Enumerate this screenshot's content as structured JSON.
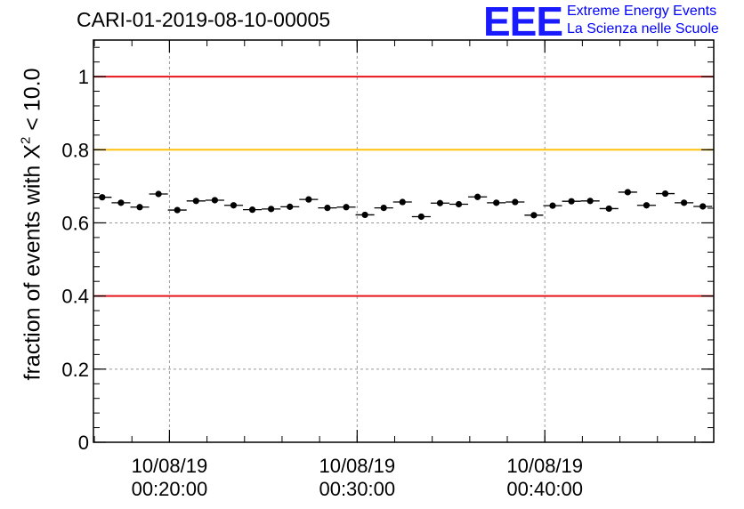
{
  "title": "CARI-01-2019-08-10-00005",
  "logo": {
    "mark": "EEE",
    "line1": "Extreme Energy Events",
    "line2": "La Scienza nelle Scuole",
    "color": "#1a1aff"
  },
  "chart_data": {
    "type": "scatter",
    "title": "CARI-01-2019-08-10-00005",
    "ylabel": {
      "prefix": "fraction of events with",
      "symbol": "X",
      "sup": "2",
      "suffix": "< 10.0"
    },
    "xlabel": "",
    "ylim": [
      0,
      1.1
    ],
    "xlim": [
      "00:15:57",
      "00:49:00"
    ],
    "grid": true,
    "yticks": [
      {
        "value": 0,
        "label": "0"
      },
      {
        "value": 0.2,
        "label": "0.2"
      },
      {
        "value": 0.4,
        "label": "0.4"
      },
      {
        "value": 0.6,
        "label": "0.6"
      },
      {
        "value": 0.8,
        "label": "0.8"
      },
      {
        "value": 1,
        "label": "1"
      }
    ],
    "xticks": [
      {
        "time": "00:20:00",
        "date": "10/08/19",
        "clock": "00:20:00"
      },
      {
        "time": "00:30:00",
        "date": "10/08/19",
        "clock": "00:30:00"
      },
      {
        "time": "00:40:00",
        "date": "10/08/19",
        "clock": "00:40:00"
      }
    ],
    "reference_lines": [
      {
        "y": 1.0,
        "color": "#e8141b"
      },
      {
        "y": 0.8,
        "color": "#ffc20e"
      },
      {
        "y": 0.4,
        "color": "#e8141b"
      }
    ],
    "series": [
      {
        "color": "#000000",
        "points": [
          {
            "t": "00:16:25",
            "y": 0.67
          },
          {
            "t": "00:17:25",
            "y": 0.655
          },
          {
            "t": "00:18:25",
            "y": 0.643
          },
          {
            "t": "00:19:25",
            "y": 0.679
          },
          {
            "t": "00:20:25",
            "y": 0.635
          },
          {
            "t": "00:21:25",
            "y": 0.66
          },
          {
            "t": "00:22:25",
            "y": 0.662
          },
          {
            "t": "00:23:25",
            "y": 0.648
          },
          {
            "t": "00:24:25",
            "y": 0.636
          },
          {
            "t": "00:25:25",
            "y": 0.638
          },
          {
            "t": "00:26:25",
            "y": 0.644
          },
          {
            "t": "00:27:25",
            "y": 0.664
          },
          {
            "t": "00:28:25",
            "y": 0.641
          },
          {
            "t": "00:29:25",
            "y": 0.643
          },
          {
            "t": "00:30:25",
            "y": 0.622
          },
          {
            "t": "00:31:25",
            "y": 0.641
          },
          {
            "t": "00:32:25",
            "y": 0.657
          },
          {
            "t": "00:33:25",
            "y": 0.617
          },
          {
            "t": "00:34:25",
            "y": 0.654
          },
          {
            "t": "00:35:25",
            "y": 0.651
          },
          {
            "t": "00:36:25",
            "y": 0.671
          },
          {
            "t": "00:37:25",
            "y": 0.655
          },
          {
            "t": "00:38:25",
            "y": 0.657
          },
          {
            "t": "00:39:25",
            "y": 0.621
          },
          {
            "t": "00:40:25",
            "y": 0.647
          },
          {
            "t": "00:41:25",
            "y": 0.659
          },
          {
            "t": "00:42:25",
            "y": 0.66
          },
          {
            "t": "00:43:25",
            "y": 0.639
          },
          {
            "t": "00:44:25",
            "y": 0.684
          },
          {
            "t": "00:45:25",
            "y": 0.648
          },
          {
            "t": "00:46:25",
            "y": 0.68
          },
          {
            "t": "00:47:25",
            "y": 0.655
          },
          {
            "t": "00:48:25",
            "y": 0.645
          }
        ],
        "bin_halfwidth_seconds": 30,
        "error": 0.008
      }
    ]
  }
}
